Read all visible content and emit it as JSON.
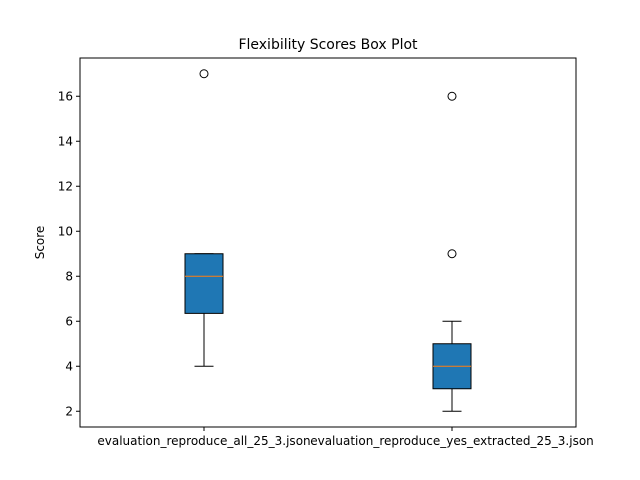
{
  "chart_data": {
    "type": "box",
    "title": "Flexibility Scores Box Plot",
    "xlabel": "",
    "ylabel": "Score",
    "ylim": [
      1.3,
      17.7
    ],
    "yticks": [
      2,
      4,
      6,
      8,
      10,
      12,
      14,
      16
    ],
    "grid": false,
    "categories": [
      "evaluation_reproduce_all_25_3.json",
      "evaluation_reproduce_yes_extracted_25_3.json"
    ],
    "boxes": [
      {
        "category": "evaluation_reproduce_all_25_3.json",
        "whisker_low": 4,
        "q1": 6.35,
        "median": 8,
        "q3": 9,
        "whisker_high": 9,
        "outliers": [
          17
        ]
      },
      {
        "category": "evaluation_reproduce_yes_extracted_25_3.json",
        "whisker_low": 2,
        "q1": 3,
        "median": 4,
        "q3": 5,
        "whisker_high": 6,
        "outliers": [
          9,
          16
        ]
      }
    ],
    "colors": {
      "box_fill": "#1f77b4",
      "median_line": "#ff7f0e",
      "edge": "#000000"
    }
  }
}
